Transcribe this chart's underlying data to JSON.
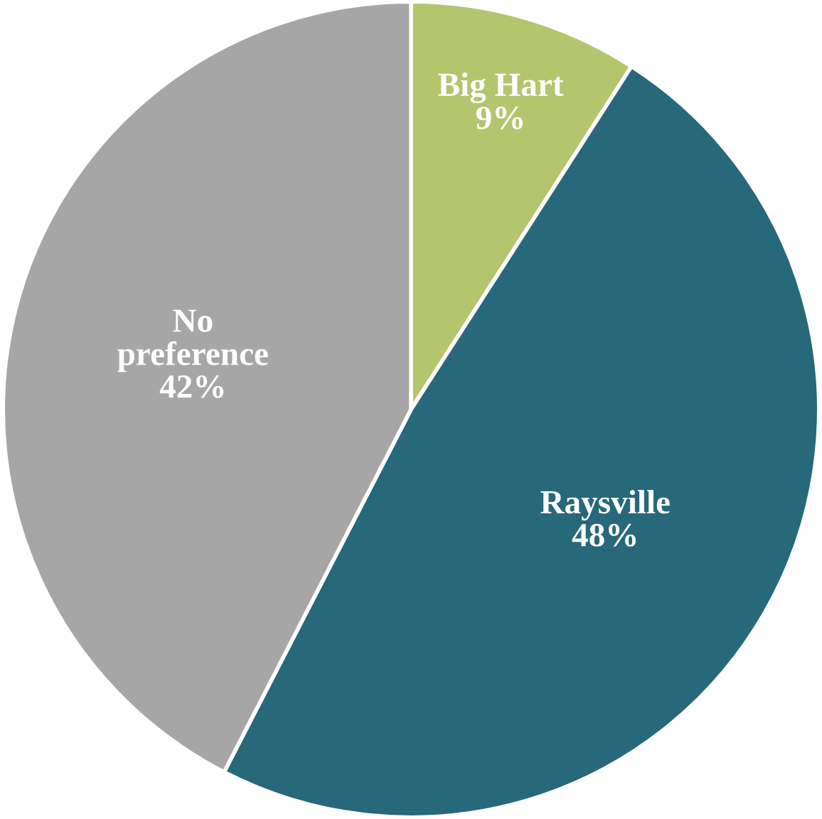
{
  "chart_data": {
    "type": "pie",
    "categories": [
      "Big Hart",
      "Raysville",
      "No preference"
    ],
    "values": [
      9,
      48,
      42
    ],
    "colors": [
      "#b3c66e",
      "#27687a",
      "#a6a6a6"
    ],
    "value_labels": [
      "9%",
      "48%",
      "42%"
    ]
  }
}
